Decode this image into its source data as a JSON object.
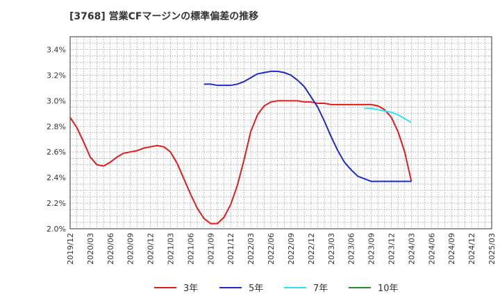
{
  "chart_data": {
    "type": "line",
    "title": "[3768]  営業CFマージンの標準偏差の推移",
    "xlabel": "",
    "ylabel": "",
    "ylim": [
      0.02,
      0.035
    ],
    "y_ticks": [
      0.02,
      0.022,
      0.024,
      0.026,
      0.028,
      0.03,
      0.032,
      0.034
    ],
    "y_tick_labels": [
      "2.0%",
      "2.2%",
      "2.4%",
      "2.6%",
      "2.8%",
      "3.0%",
      "3.2%",
      "3.4%"
    ],
    "x_ticks": [
      "2019/12",
      "2020/03",
      "2020/06",
      "2020/09",
      "2020/12",
      "2021/03",
      "2021/06",
      "2021/09",
      "2021/12",
      "2022/03",
      "2022/06",
      "2022/09",
      "2022/12",
      "2023/03",
      "2023/06",
      "2023/09",
      "2023/12",
      "2024/03",
      "2024/06",
      "2024/09",
      "2024/12",
      "2025/03"
    ],
    "grid": true,
    "legend_position": "bottom",
    "colors": {
      "3年": "#e31a1c",
      "5年": "#1f28c8",
      "7年": "#33e0f0",
      "10年": "#2a8a2a"
    },
    "series": [
      {
        "name": "3年",
        "x": [
          "2019/12",
          "2020/01",
          "2020/02",
          "2020/03",
          "2020/04",
          "2020/05",
          "2020/06",
          "2020/07",
          "2020/08",
          "2020/09",
          "2020/10",
          "2020/11",
          "2020/12",
          "2021/01",
          "2021/02",
          "2021/03",
          "2021/04",
          "2021/05",
          "2021/06",
          "2021/07",
          "2021/08",
          "2021/09",
          "2021/10",
          "2021/11",
          "2021/12",
          "2022/01",
          "2022/02",
          "2022/03",
          "2022/04",
          "2022/05",
          "2022/06",
          "2022/07",
          "2022/08",
          "2022/09",
          "2022/10",
          "2022/11",
          "2022/12",
          "2023/01",
          "2023/02",
          "2023/03",
          "2023/04",
          "2023/05",
          "2023/06",
          "2023/07",
          "2023/08",
          "2023/09",
          "2023/10",
          "2023/11",
          "2023/12",
          "2024/01",
          "2024/02",
          "2024/03"
        ],
        "values": [
          0.0287,
          0.0279,
          0.0268,
          0.0256,
          0.025,
          0.0249,
          0.0252,
          0.0256,
          0.0259,
          0.026,
          0.0261,
          0.0263,
          0.0264,
          0.0265,
          0.0264,
          0.026,
          0.0251,
          0.0239,
          0.0227,
          0.0216,
          0.0208,
          0.0204,
          0.0204,
          0.0209,
          0.0219,
          0.0234,
          0.0254,
          0.0276,
          0.0289,
          0.0296,
          0.0299,
          0.03,
          0.03,
          0.03,
          0.03,
          0.0299,
          0.0299,
          0.0298,
          0.0298,
          0.0297,
          0.0297,
          0.0297,
          0.0297,
          0.0297,
          0.0297,
          0.0297,
          0.0296,
          0.0293,
          0.0287,
          0.0276,
          0.026,
          0.0237
        ]
      },
      {
        "name": "5年",
        "x": [
          "2021/08",
          "2021/09",
          "2021/10",
          "2021/11",
          "2021/12",
          "2022/01",
          "2022/02",
          "2022/03",
          "2022/04",
          "2022/05",
          "2022/06",
          "2022/07",
          "2022/08",
          "2022/09",
          "2022/10",
          "2022/11",
          "2022/12",
          "2023/01",
          "2023/02",
          "2023/03",
          "2023/04",
          "2023/05",
          "2023/06",
          "2023/07",
          "2023/08",
          "2023/09",
          "2023/10",
          "2023/11",
          "2023/12",
          "2024/01",
          "2024/02",
          "2024/03"
        ],
        "values": [
          0.0313,
          0.0313,
          0.0312,
          0.0312,
          0.0312,
          0.0313,
          0.0315,
          0.0318,
          0.0321,
          0.0322,
          0.0323,
          0.0323,
          0.0322,
          0.032,
          0.0316,
          0.0311,
          0.0303,
          0.0295,
          0.0284,
          0.0272,
          0.0261,
          0.0252,
          0.0246,
          0.0241,
          0.0239,
          0.0237,
          0.0237,
          0.0237,
          0.0237,
          0.0237,
          0.0237,
          0.0237
        ]
      },
      {
        "name": "7年",
        "x": [
          "2023/08",
          "2023/09",
          "2023/10",
          "2023/11",
          "2023/12",
          "2024/01",
          "2024/02",
          "2024/03"
        ],
        "values": [
          0.0294,
          0.0294,
          0.0293,
          0.0292,
          0.0291,
          0.0289,
          0.0286,
          0.0283
        ]
      },
      {
        "name": "10年",
        "x": [],
        "values": []
      }
    ]
  }
}
